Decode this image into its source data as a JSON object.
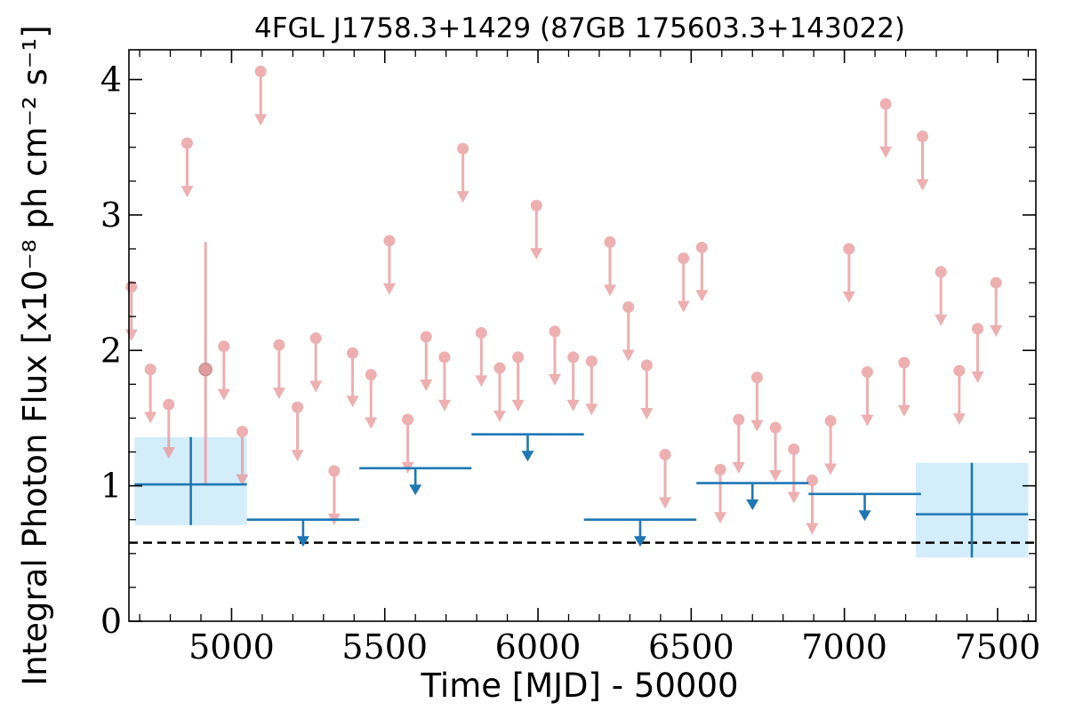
{
  "chart_data": {
    "type": "scatter",
    "title": "4FGL J1758.3+1429 (87GB 175603.3+143022)",
    "xlabel": "Time [MJD] - 50000",
    "ylabel": "Integral Photon Flux [x10⁻⁸ ph cm⁻² s⁻¹]",
    "xlim": [
      4665,
      7625
    ],
    "ylim": [
      0,
      4.22
    ],
    "x_ticks": [
      5000,
      5500,
      6000,
      6500,
      7000,
      7500
    ],
    "x_tick_labels": [
      "5000",
      "5500",
      "6000",
      "6500",
      "7000",
      "7500"
    ],
    "y_ticks": [
      0,
      1,
      2,
      3,
      4
    ],
    "y_tick_labels": [
      "0",
      "1",
      "2",
      "3",
      "4"
    ],
    "grid": false,
    "legend": "none",
    "colors": {
      "fine_bins": "#e8999a",
      "coarse_bins": "#1f77b4",
      "coarse_fill": "#d3edfb",
      "reference_line": "#000000"
    },
    "reference_line": {
      "y": 0.58,
      "style": "dashed"
    },
    "series": [
      {
        "binning": "fine",
        "upper_limits": [
          {
            "x": 4673,
            "y": 2.47
          },
          {
            "x": 4735,
            "y": 1.86
          },
          {
            "x": 4795,
            "y": 1.6
          },
          {
            "x": 4855,
            "y": 3.53
          },
          {
            "x": 4975,
            "y": 2.03
          },
          {
            "x": 5035,
            "y": 1.4
          },
          {
            "x": 5095,
            "y": 4.06
          },
          {
            "x": 5155,
            "y": 2.04
          },
          {
            "x": 5215,
            "y": 1.58
          },
          {
            "x": 5275,
            "y": 2.09
          },
          {
            "x": 5335,
            "y": 1.11
          },
          {
            "x": 5395,
            "y": 1.98
          },
          {
            "x": 5455,
            "y": 1.82
          },
          {
            "x": 5515,
            "y": 2.81
          },
          {
            "x": 5575,
            "y": 1.49
          },
          {
            "x": 5635,
            "y": 2.1
          },
          {
            "x": 5695,
            "y": 1.95
          },
          {
            "x": 5755,
            "y": 3.49
          },
          {
            "x": 5815,
            "y": 2.13
          },
          {
            "x": 5875,
            "y": 1.87
          },
          {
            "x": 5935,
            "y": 1.95
          },
          {
            "x": 5995,
            "y": 3.07
          },
          {
            "x": 6055,
            "y": 2.14
          },
          {
            "x": 6115,
            "y": 1.95
          },
          {
            "x": 6175,
            "y": 1.92
          },
          {
            "x": 6235,
            "y": 2.8
          },
          {
            "x": 6295,
            "y": 2.32
          },
          {
            "x": 6355,
            "y": 1.89
          },
          {
            "x": 6415,
            "y": 1.23
          },
          {
            "x": 6475,
            "y": 2.68
          },
          {
            "x": 6535,
            "y": 2.76
          },
          {
            "x": 6595,
            "y": 1.12
          },
          {
            "x": 6655,
            "y": 1.49
          },
          {
            "x": 6715,
            "y": 1.8
          },
          {
            "x": 6775,
            "y": 1.43
          },
          {
            "x": 6835,
            "y": 1.27
          },
          {
            "x": 6895,
            "y": 1.04
          },
          {
            "x": 6955,
            "y": 1.48
          },
          {
            "x": 7015,
            "y": 2.75
          },
          {
            "x": 7075,
            "y": 1.84
          },
          {
            "x": 7135,
            "y": 3.82
          },
          {
            "x": 7195,
            "y": 1.91
          },
          {
            "x": 7255,
            "y": 3.58
          },
          {
            "x": 7315,
            "y": 2.58
          },
          {
            "x": 7375,
            "y": 1.85
          },
          {
            "x": 7435,
            "y": 2.16
          },
          {
            "x": 7495,
            "y": 2.5
          }
        ],
        "detections": [
          {
            "x": 4915,
            "y": 1.86,
            "y_err_low": 0.86,
            "y_err_high": 0.94
          }
        ]
      },
      {
        "binning": "coarse",
        "detections": [
          {
            "x": 4867,
            "x_low": 4683,
            "x_high": 5050,
            "y": 1.01,
            "y_low": 0.71,
            "y_high": 1.36
          },
          {
            "x": 7416,
            "x_low": 7233,
            "x_high": 7600,
            "y": 0.79,
            "y_low": 0.47,
            "y_high": 1.17
          }
        ],
        "upper_limits": [
          {
            "x_low": 5050,
            "x_high": 5417,
            "y": 0.75
          },
          {
            "x_low": 5417,
            "x_high": 5783,
            "y": 1.13
          },
          {
            "x_low": 5783,
            "x_high": 6150,
            "y": 1.38
          },
          {
            "x_low": 6150,
            "x_high": 6517,
            "y": 0.75
          },
          {
            "x_low": 6517,
            "x_high": 6883,
            "y": 1.02
          },
          {
            "x_low": 6883,
            "x_high": 7250,
            "y": 0.94
          }
        ]
      }
    ]
  }
}
